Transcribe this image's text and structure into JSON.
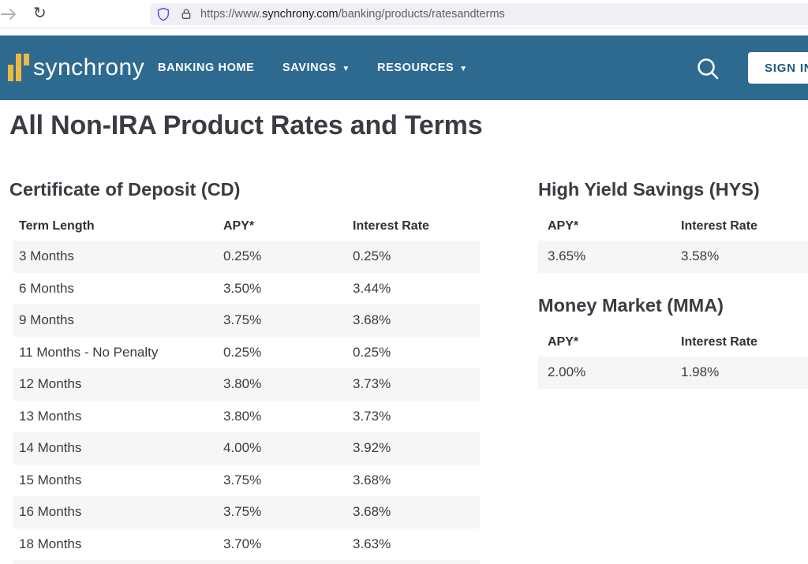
{
  "browser": {
    "url": {
      "prefix": "https://www.",
      "domain": "synchrony.com",
      "path": "/banking/products/ratesandterms"
    }
  },
  "icons": {
    "forward": "forward-arrow",
    "reload_glyph": "↻",
    "shield": "tracking-protection-shield",
    "lock": "padlock",
    "search": "magnifying-glass",
    "caret_down": "▼"
  },
  "navbar": {
    "brand": "synchrony",
    "links": [
      {
        "label": "BANKING HOME",
        "caret": false
      },
      {
        "label": "SAVINGS",
        "caret": true
      },
      {
        "label": "RESOURCES",
        "caret": true
      }
    ],
    "sign_in": "SIGN IN"
  },
  "colors": {
    "navbar_blue": "#2e6a90",
    "brand_gold": "#efb843",
    "alt_row_gray": "#f6f6f7",
    "heading_text": "#3b3c43",
    "signin_text": "#1e5a80"
  },
  "page": {
    "title": "All Non-IRA Product Rates and Terms",
    "cd": {
      "heading": "Certificate of Deposit (CD)",
      "columns": [
        "Term Length",
        "APY*",
        "Interest Rate"
      ],
      "rows": [
        [
          "3 Months",
          "0.25%",
          "0.25%"
        ],
        [
          "6 Months",
          "3.50%",
          "3.44%"
        ],
        [
          "9 Months",
          "3.75%",
          "3.68%"
        ],
        [
          "11 Months - No Penalty",
          "0.25%",
          "0.25%"
        ],
        [
          "12 Months",
          "3.80%",
          "3.73%"
        ],
        [
          "13 Months",
          "3.80%",
          "3.73%"
        ],
        [
          "14 Months",
          "4.00%",
          "3.92%"
        ],
        [
          "15 Months",
          "3.75%",
          "3.68%"
        ],
        [
          "16 Months",
          "3.75%",
          "3.68%"
        ],
        [
          "18 Months",
          "3.70%",
          "3.63%"
        ]
      ]
    },
    "hys": {
      "heading": "High Yield Savings (HYS)",
      "columns": [
        "APY*",
        "Interest Rate"
      ],
      "rows": [
        [
          "3.65%",
          "3.58%"
        ]
      ]
    },
    "mma": {
      "heading": "Money Market (MMA)",
      "columns": [
        "APY*",
        "Interest Rate"
      ],
      "rows": [
        [
          "2.00%",
          "1.98%"
        ]
      ]
    }
  }
}
